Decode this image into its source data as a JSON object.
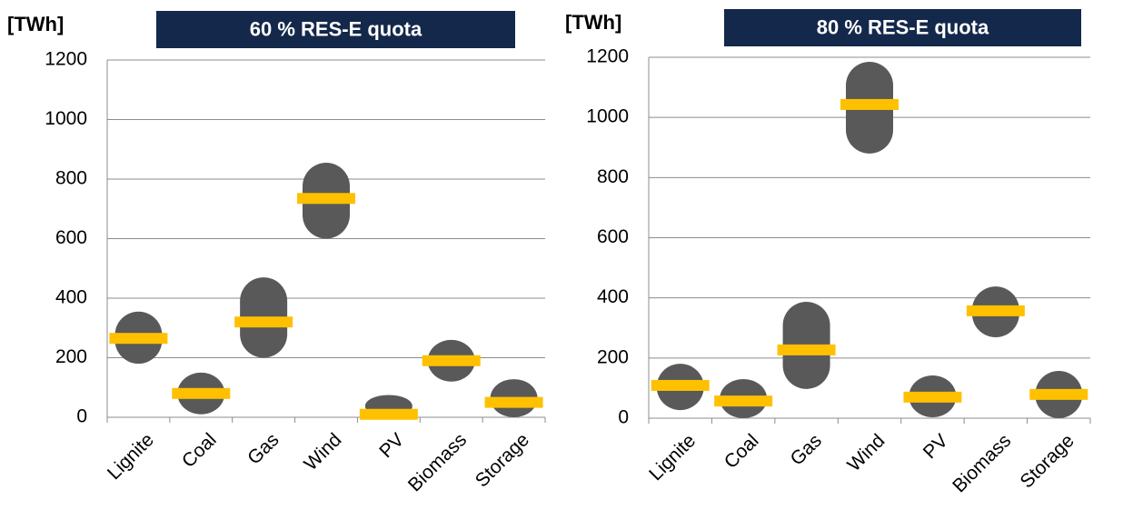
{
  "chart_data": [
    {
      "type": "range",
      "title": "60 % RES-E quota",
      "y_label": "[TWh]",
      "categories": [
        "Lignite",
        "Coal",
        "Gas",
        "Wind",
        "PV",
        "Biomass",
        "Storage"
      ],
      "low": [
        180,
        10,
        200,
        600,
        0,
        120,
        0
      ],
      "high": [
        355,
        150,
        470,
        855,
        75,
        260,
        128
      ],
      "mid": [
        265,
        80,
        320,
        735,
        10,
        190,
        50
      ],
      "range_color": "#595959",
      "mid_color": "#ffc000",
      "title_color": "#14284b",
      "ylim": [
        0,
        1200
      ],
      "yticks": [
        0,
        200,
        400,
        600,
        800,
        1000,
        1200
      ],
      "grid": true
    },
    {
      "type": "range",
      "title": "80 % RES-E quota",
      "y_label": "[TWh]",
      "categories": [
        "Lignite",
        "Coal",
        "Gas",
        "Wind",
        "PV",
        "Biomass",
        "Storage"
      ],
      "low": [
        27,
        0,
        97,
        880,
        3,
        269,
        0
      ],
      "high": [
        181,
        130,
        387,
        1185,
        142,
        438,
        157
      ],
      "mid": [
        109,
        57,
        227,
        1043,
        70,
        357,
        79
      ],
      "range_color": "#595959",
      "mid_color": "#ffc000",
      "title_color": "#14284b",
      "ylim": [
        0,
        1200
      ],
      "yticks": [
        0,
        200,
        400,
        600,
        800,
        1000,
        1200
      ],
      "grid": true
    }
  ]
}
